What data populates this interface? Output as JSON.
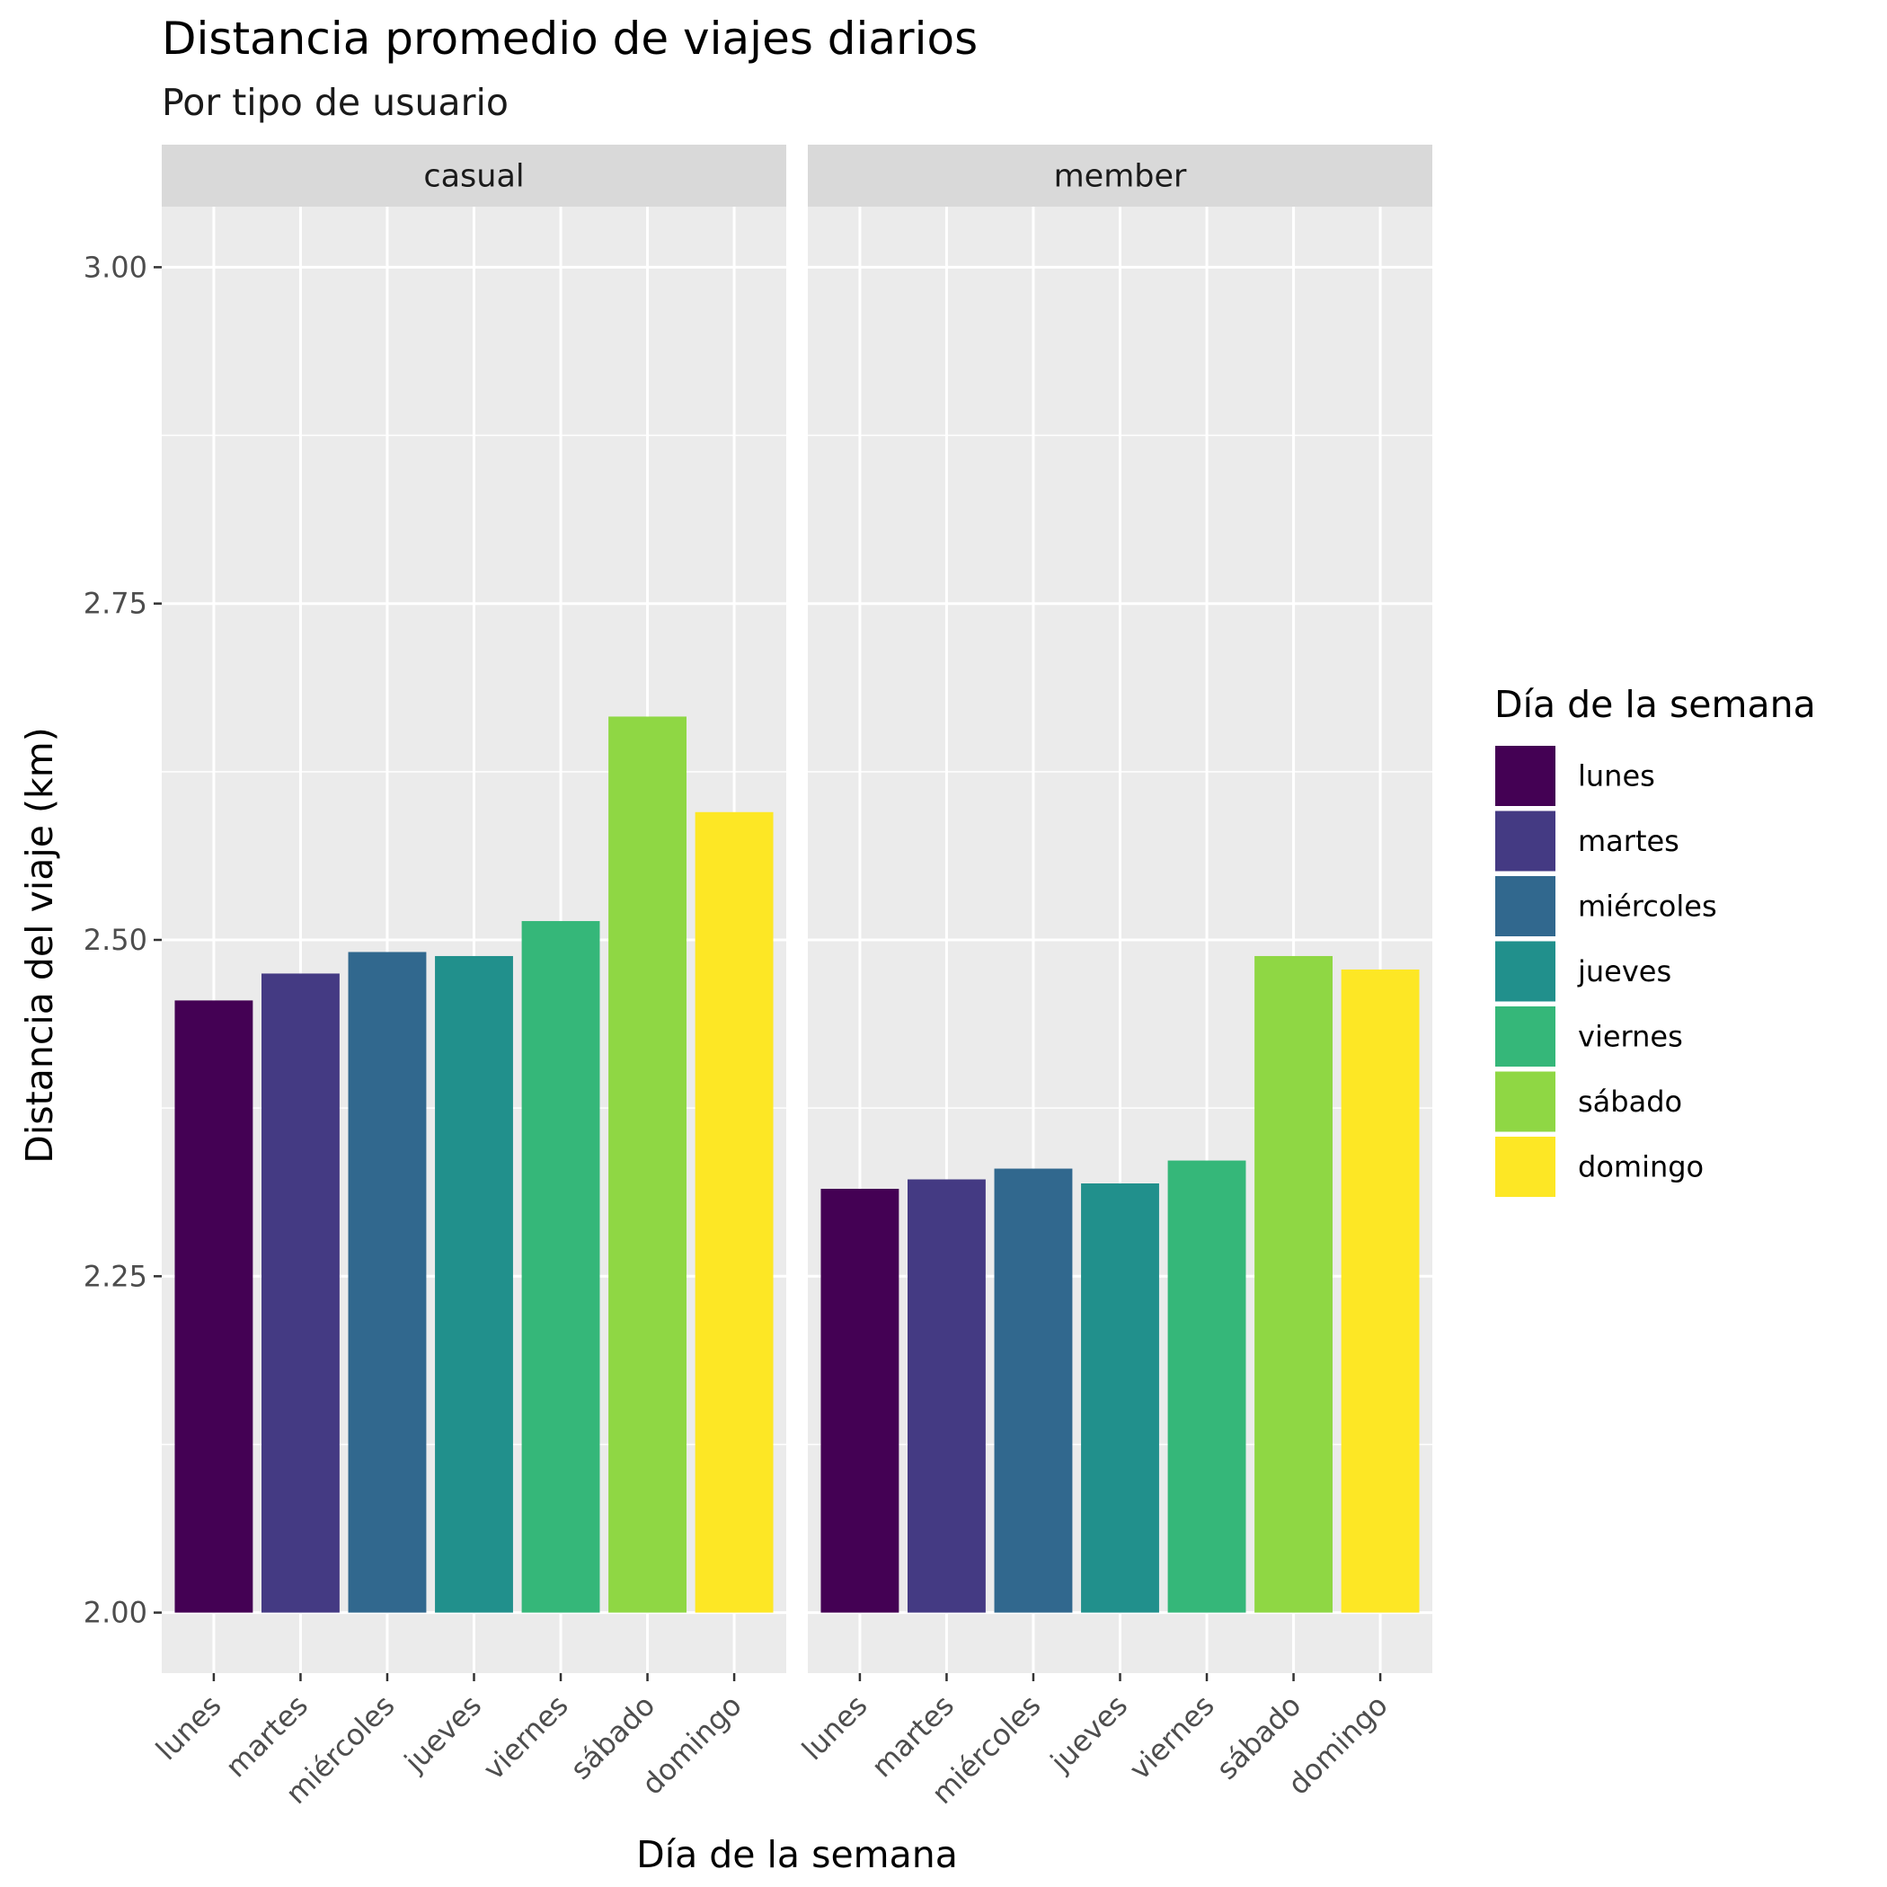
{
  "chart_data": {
    "type": "bar",
    "title": "Distancia promedio de viajes diarios",
    "subtitle": "Por tipo de usuario",
    "xlabel": "Día de la semana",
    "ylabel": "Distancia del viaje (km)",
    "categories": [
      "lunes",
      "martes",
      "miércoles",
      "jueves",
      "viernes",
      "sábado",
      "domingo"
    ],
    "facets": [
      "casual",
      "member"
    ],
    "series": [
      {
        "name": "casual",
        "values": [
          2.455,
          2.475,
          2.491,
          2.488,
          2.514,
          2.666,
          2.595
        ]
      },
      {
        "name": "member",
        "values": [
          2.315,
          2.322,
          2.33,
          2.319,
          2.336,
          2.488,
          2.478
        ]
      }
    ],
    "ylim": [
      1.955,
      3.045
    ],
    "yticks": [
      2.0,
      2.25,
      2.5,
      2.75,
      3.0
    ],
    "ytick_labels": [
      "2.00",
      "2.25",
      "2.50",
      "2.75",
      "3.00"
    ],
    "grid": true,
    "legend": {
      "title": "Día de la semana",
      "position": "right",
      "labels": [
        "lunes",
        "martes",
        "miércoles",
        "jueves",
        "viernes",
        "sábado",
        "domingo"
      ]
    },
    "colors": [
      "#440154",
      "#443a83",
      "#31688e",
      "#21908c",
      "#35b779",
      "#8fd744",
      "#fde725"
    ],
    "panel_background": "#ebebeb",
    "strip_background": "#d9d9d9",
    "grid_color": "#ffffff"
  }
}
